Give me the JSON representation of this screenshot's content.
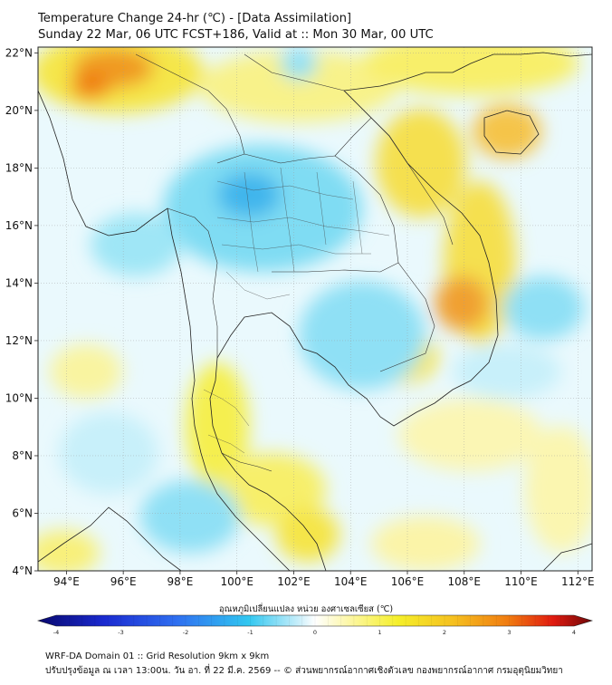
{
  "header": {
    "title": "Temperature Change 24-hr (℃) - [Data Assimilation]",
    "subtitle": "Sunday 22 Mar, 06 UTC FCST+186, Valid at :: Mon 30 Mar, 00 UTC"
  },
  "map": {
    "lon_range": [
      93,
      112.5
    ],
    "lat_range": [
      4,
      22.2
    ],
    "lat_labels": [
      "22°N",
      "20°N",
      "18°N",
      "16°N",
      "14°N",
      "12°N",
      "10°N",
      "8°N",
      "6°N",
      "4°N"
    ],
    "lat_values": [
      22,
      20,
      18,
      16,
      14,
      12,
      10,
      8,
      6,
      4
    ],
    "lon_labels": [
      "94°E",
      "96°E",
      "98°E",
      "100°E",
      "102°E",
      "104°E",
      "106°E",
      "108°E",
      "110°E",
      "112°E"
    ],
    "lon_values": [
      94,
      96,
      98,
      100,
      102,
      104,
      106,
      108,
      110,
      112
    ],
    "gridlines": true
  },
  "colorbar": {
    "title": "อุณหภูมิเปลี่ยนแปลง หน่วย องศาเซลเซียส (℃)",
    "range": [
      -4,
      4
    ],
    "tick_labels": [
      "-4",
      "-3",
      "-2",
      "-1",
      "0",
      "1",
      "2",
      "3",
      "4"
    ],
    "colors": {
      "cold_extreme": "#08086e",
      "cold": "#1f4fe0",
      "cool": "#31c7f0",
      "neutral": "#ffffff",
      "warm": "#f5ef2a",
      "hot": "#f07a10",
      "hot_extreme": "#6e0808"
    }
  },
  "footer": {
    "line1": "WRF-DA Domain 01 :: Grid Resolution 9km x 9km",
    "line2": "ปรับปรุงข้อมูล ณ เวลา 13:00น. วัน อา. ที่ 22 มี.ค. 2569 -- © ส่วนพยากรณ์อากาศเชิงตัวเลข กองพยากรณ์อากาศ กรมอุตุนิยมวิทยา"
  }
}
